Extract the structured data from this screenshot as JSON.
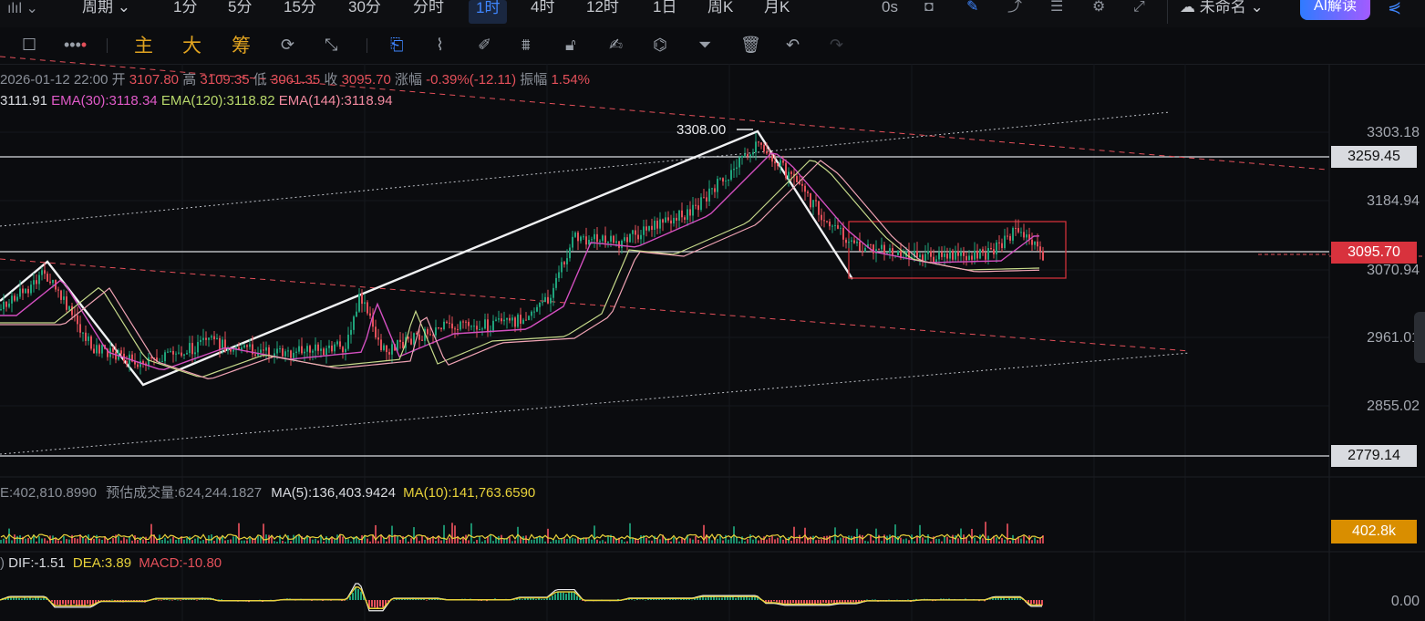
{
  "topbar": {
    "period_label": "周期",
    "intervals": [
      "1分",
      "5分",
      "15分",
      "30分",
      "分时",
      "1时",
      "4时",
      "12时",
      "1日",
      "周K",
      "月K"
    ],
    "active_interval": "1时",
    "countdown": "0s",
    "layout_name": "未命名",
    "ai_button": "AI解读"
  },
  "toolbar2": {
    "main": "主",
    "big": "大",
    "chips": "筹"
  },
  "ohlc": {
    "datetime": "2026-01-12 22:00",
    "open_label": "开",
    "open": "3107.80",
    "high_label": "高",
    "high": "3109.35",
    "low_label": "低",
    "low": "3061.35",
    "close_label": "收",
    "close": "3095.70",
    "change_label": "涨幅",
    "change": "-0.39%(-12.11)",
    "amp_label": "振幅",
    "amp": "1.54%"
  },
  "ema": {
    "ema_short": "3111.91",
    "ema30": "EMA(30):3118.34",
    "ema120": "EMA(120):3118.82",
    "ema144": "EMA(144):3118.94"
  },
  "annotation_high": "3308.00",
  "price_axis": {
    "ticks": [
      "3303.18",
      "3184.94",
      "3070.94",
      "2961.01",
      "2855.02"
    ],
    "hline_top": "3259.45",
    "current": "3095.70",
    "hline_bottom": "2779.14"
  },
  "volume": {
    "vol": "E:402,810.8990",
    "est_label": "预估成交量:624,244.1827",
    "ma5": "MA(5):136,403.9424",
    "ma10": "MA(10):141,763.6590",
    "current": "402.8k"
  },
  "macd": {
    "prefix": ")",
    "dif": "DIF:-1.51",
    "dea": "DEA:3.89",
    "macd": "MACD:-10.80",
    "zero": "0.00"
  },
  "colors": {
    "up": "#1fa37b",
    "down": "#e4505a",
    "accent": "#3f86ff",
    "bg": "#0b0c0f"
  }
}
